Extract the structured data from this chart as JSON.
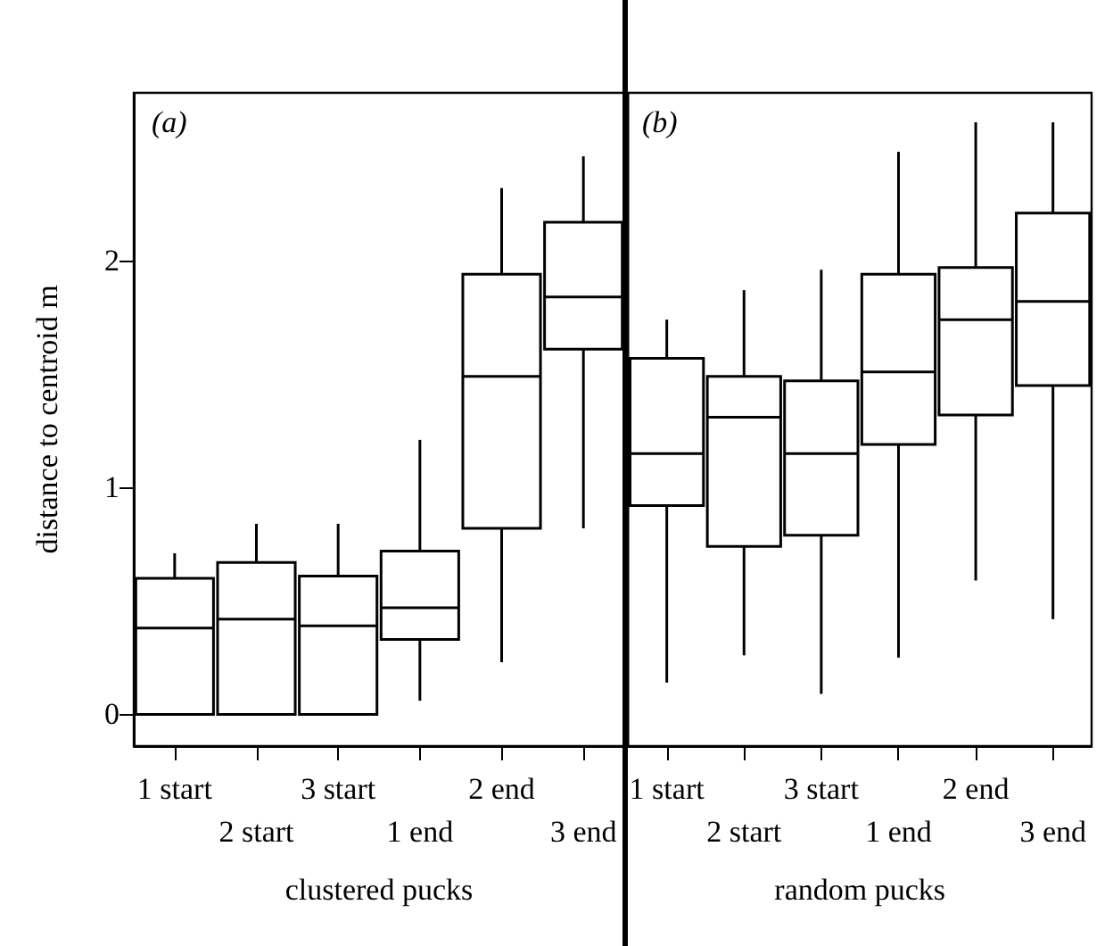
{
  "chart_data": [
    {
      "type": "box",
      "annotations": [
        "(a)"
      ],
      "xlabel": "clustered pucks",
      "ylabel": "distance to centroid m",
      "categories": [
        "1 start",
        "2 start",
        "3 start",
        "1 end",
        "2 end",
        "3 end"
      ],
      "boxes": [
        {
          "low": 0,
          "q1": 0,
          "median": 0.38,
          "q3": 0.6,
          "high": 0.71
        },
        {
          "low": 0,
          "q1": 0,
          "median": 0.42,
          "q3": 0.67,
          "high": 0.84
        },
        {
          "low": 0,
          "q1": 0,
          "median": 0.39,
          "q3": 0.61,
          "high": 0.84
        },
        {
          "low": 0.06,
          "q1": 0.33,
          "median": 0.47,
          "q3": 0.72,
          "high": 1.21
        },
        {
          "low": 0.23,
          "q1": 0.82,
          "median": 1.49,
          "q3": 1.94,
          "high": 2.32
        },
        {
          "low": 0.82,
          "q1": 1.61,
          "median": 1.84,
          "q3": 2.17,
          "high": 2.46
        }
      ],
      "ylim": [
        -0.14,
        2.74
      ],
      "yticks": [
        0,
        1,
        2
      ]
    },
    {
      "type": "box",
      "annotations": [
        "(b)"
      ],
      "xlabel": "random pucks",
      "categories": [
        "1 start",
        "2 start",
        "3 start",
        "1 end",
        "2 end",
        "3 end"
      ],
      "boxes": [
        {
          "low": 0.14,
          "q1": 0.92,
          "median": 1.15,
          "q3": 1.57,
          "high": 1.74
        },
        {
          "low": 0.26,
          "q1": 0.74,
          "median": 1.31,
          "q3": 1.49,
          "high": 1.87
        },
        {
          "low": 0.09,
          "q1": 0.79,
          "median": 1.15,
          "q3": 1.47,
          "high": 1.96
        },
        {
          "low": 0.25,
          "q1": 1.19,
          "median": 1.51,
          "q3": 1.94,
          "high": 2.48
        },
        {
          "low": 0.59,
          "q1": 1.32,
          "median": 1.74,
          "q3": 1.97,
          "high": 2.61
        },
        {
          "low": 0.42,
          "q1": 1.45,
          "median": 1.82,
          "q3": 2.21,
          "high": 2.61
        }
      ],
      "ylim": [
        -0.14,
        2.74
      ],
      "yticks": [
        0,
        1,
        2
      ],
      "tick_labels": "x"
    }
  ]
}
